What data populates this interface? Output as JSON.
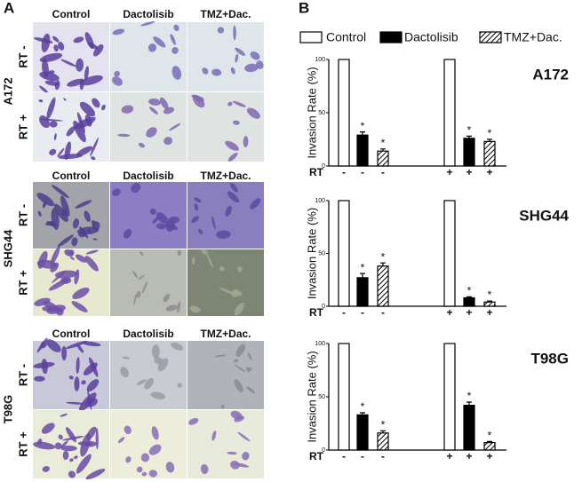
{
  "panel_a": {
    "label": "A",
    "blocks": [
      {
        "cell_line": "A172",
        "columns": [
          "Control",
          "Dactolisib",
          "TMZ+Dac."
        ],
        "rows": [
          "RT -",
          "RT +"
        ]
      },
      {
        "cell_line": "SHG44",
        "columns": [
          "Control",
          "Dactolisib",
          "TMZ+Dac."
        ],
        "rows": [
          "RT -",
          "RT +"
        ]
      },
      {
        "cell_line": "T98G",
        "columns": [
          "Control",
          "Dactolisib",
          "TMZ+Dac."
        ],
        "rows": [
          "RT -",
          "RT +"
        ]
      }
    ]
  },
  "panel_b": {
    "label": "B",
    "legend": [
      {
        "name": "Control",
        "fill": "open"
      },
      {
        "name": "Dactolisib",
        "fill": "solid"
      },
      {
        "name": "TMZ+Dac.",
        "fill": "hatched"
      }
    ]
  },
  "chart_data": [
    {
      "type": "bar",
      "title": "A172",
      "ylabel": "Invasion Rate (%)",
      "xlabel": "RT",
      "ylim": [
        0,
        100
      ],
      "yticks": [
        0,
        50,
        100
      ],
      "groups": [
        {
          "x_labels": [
            "-",
            "-",
            "-"
          ],
          "values": [
            100,
            29,
            14
          ],
          "errors": [
            null,
            3,
            2
          ],
          "stars": [
            null,
            "*",
            "*"
          ]
        },
        {
          "x_labels": [
            "+",
            "+",
            "+"
          ],
          "values": [
            100,
            26,
            23
          ],
          "errors": [
            null,
            2,
            2
          ],
          "stars": [
            null,
            "*",
            "*"
          ]
        }
      ]
    },
    {
      "type": "bar",
      "title": "SHG44",
      "ylabel": "Invasion Rate (%)",
      "xlabel": "RT",
      "ylim": [
        0,
        100
      ],
      "yticks": [
        0,
        50,
        100
      ],
      "groups": [
        {
          "x_labels": [
            "-",
            "-",
            "-"
          ],
          "values": [
            100,
            27,
            38
          ],
          "errors": [
            null,
            4,
            3
          ],
          "stars": [
            null,
            "*",
            "*"
          ]
        },
        {
          "x_labels": [
            "+",
            "+",
            "+"
          ],
          "values": [
            100,
            8,
            4
          ],
          "errors": [
            null,
            1,
            1
          ],
          "stars": [
            null,
            "*",
            "*"
          ]
        }
      ]
    },
    {
      "type": "bar",
      "title": "T98G",
      "ylabel": "Invasion Rate (%)",
      "xlabel": "RT",
      "ylim": [
        0,
        100
      ],
      "yticks": [
        0,
        50,
        100
      ],
      "groups": [
        {
          "x_labels": [
            "-",
            "-",
            "-"
          ],
          "values": [
            100,
            33,
            16
          ],
          "errors": [
            null,
            2,
            2
          ],
          "stars": [
            null,
            "*",
            "*"
          ]
        },
        {
          "x_labels": [
            "+",
            "+",
            "+"
          ],
          "values": [
            100,
            42,
            7
          ],
          "errors": [
            null,
            3,
            1
          ],
          "stars": [
            null,
            "*",
            "*"
          ]
        }
      ]
    }
  ]
}
